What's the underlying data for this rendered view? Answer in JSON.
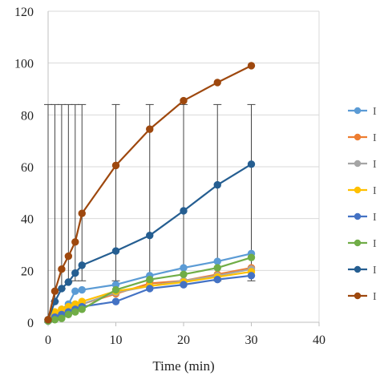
{
  "chart_data": {
    "type": "line",
    "title": "",
    "xlabel": "Time (min)",
    "ylabel": "",
    "xlim": [
      0,
      40
    ],
    "ylim": [
      0,
      120
    ],
    "xticks": [
      0,
      10,
      20,
      30,
      40
    ],
    "yticks": [
      0,
      20,
      40,
      60,
      80,
      100,
      120
    ],
    "xtick_labels": [
      "0",
      "10",
      "20",
      "30",
      "40"
    ],
    "ytick_labels": [
      "0",
      "20",
      "40",
      "60",
      "80",
      "100",
      "120"
    ],
    "grid": "horizontal",
    "legend_position": "right",
    "error_bar_top": 84,
    "x": [
      0,
      1,
      2,
      3,
      4,
      5,
      10,
      15,
      20,
      25,
      30
    ],
    "series": [
      {
        "color": "#5B9BD5",
        "legend_text": "I",
        "values": [
          1,
          3,
          5,
          7,
          12,
          12.5,
          14.5,
          18,
          21,
          23.5,
          26.5
        ]
      },
      {
        "color": "#ED7D31",
        "legend_text": "I",
        "values": [
          1,
          3,
          4,
          5,
          6,
          7,
          11,
          15,
          16,
          18.5,
          21
        ]
      },
      {
        "color": "#A5A5A5",
        "legend_text": "I",
        "values": [
          1,
          3,
          4,
          5,
          6,
          7,
          11.5,
          14,
          16,
          18,
          20.5
        ]
      },
      {
        "color": "#FFC000",
        "legend_text": "I",
        "values": [
          1,
          4,
          5,
          6,
          7,
          8,
          12,
          14,
          15.5,
          17.5,
          19.5
        ]
      },
      {
        "color": "#4472C4",
        "legend_text": "I",
        "values": [
          0.5,
          2,
          3,
          4,
          5,
          6,
          8,
          13,
          14.5,
          16.5,
          18
        ]
      },
      {
        "color": "#70AD47",
        "legend_text": "I",
        "values": [
          0.5,
          1,
          1.5,
          3,
          4,
          5,
          12.5,
          16.5,
          18.5,
          21,
          25
        ]
      },
      {
        "color": "#255E91",
        "legend_text": "I",
        "values": [
          1,
          8,
          13,
          15.5,
          19,
          22,
          27.5,
          33.5,
          43,
          53,
          61
        ]
      },
      {
        "color": "#9E480E",
        "legend_text": "I",
        "values": [
          1,
          12,
          20.5,
          25.5,
          31,
          42,
          60.5,
          74.5,
          85.5,
          92.5,
          99
        ]
      }
    ]
  }
}
